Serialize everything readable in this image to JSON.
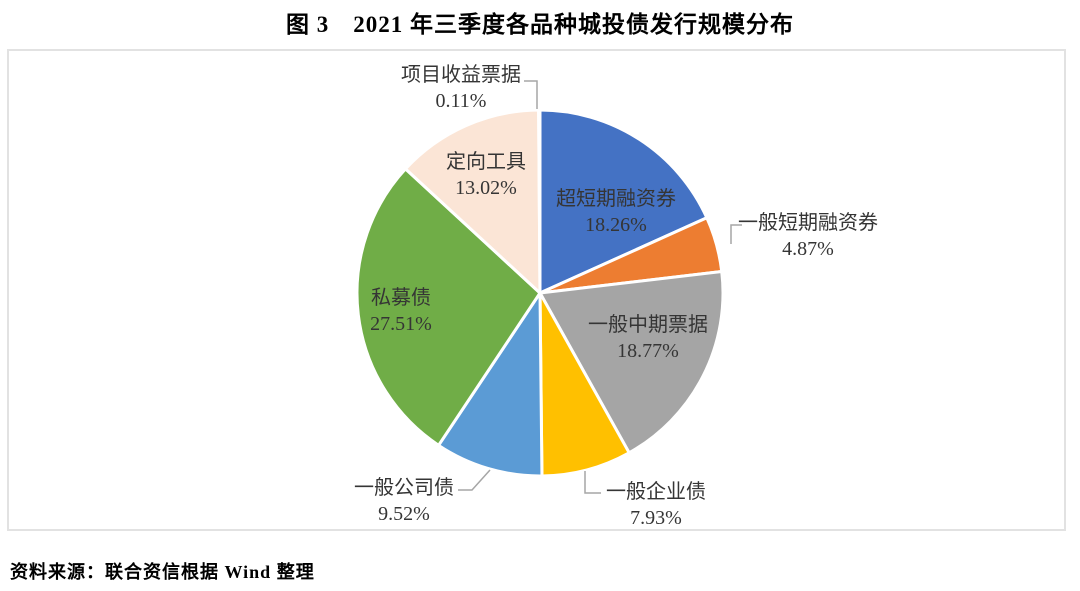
{
  "title": "图 3　2021 年三季度各品种城投债发行规模分布",
  "source": "资料来源：联合资信根据 Wind 整理",
  "colors": {
    "leader_line": "#a6a6a6",
    "slice_border": "#ffffff",
    "chart_box_border": "#e2e2e2",
    "label_text": "#353535"
  },
  "chart_data": {
    "type": "pie",
    "title": "图 3　2021 年三季度各品种城投债发行规模分布",
    "start_angle_deg": 0,
    "direction": "clockwise",
    "legend": "none",
    "label_style": "category name + percent, inside for large slices, outside with leader lines for small slices",
    "slices": [
      {
        "id": "super-short-term-cp",
        "label": "超短期融资券",
        "value": 18.26,
        "pct_text": "18.26%",
        "color": "#4472c4",
        "label_position": "inside"
      },
      {
        "id": "short-term-cp",
        "label": "一般短期融资券",
        "value": 4.87,
        "pct_text": "4.87%",
        "color": "#ed7d31",
        "label_position": "outside"
      },
      {
        "id": "mtn",
        "label": "一般中期票据",
        "value": 18.77,
        "pct_text": "18.77%",
        "color": "#a5a5a5",
        "label_position": "inside"
      },
      {
        "id": "enterprise-bond",
        "label": "一般企业债",
        "value": 7.93,
        "pct_text": "7.93%",
        "color": "#ffc000",
        "label_position": "outside"
      },
      {
        "id": "corporate-bond",
        "label": "一般公司债",
        "value": 9.52,
        "pct_text": "9.52%",
        "color": "#5b9bd5",
        "label_position": "outside"
      },
      {
        "id": "private-placement-bond",
        "label": "私募债",
        "value": 27.51,
        "pct_text": "27.51%",
        "color": "#70ad47",
        "label_position": "inside"
      },
      {
        "id": "ppn",
        "label": "定向工具",
        "value": 13.02,
        "pct_text": "13.02%",
        "color": "#fbe5d6",
        "label_position": "inside"
      },
      {
        "id": "project-revenue-note",
        "label": "项目收益票据",
        "value": 0.11,
        "pct_text": "0.11%",
        "color": "#264478",
        "label_position": "outside"
      }
    ]
  }
}
